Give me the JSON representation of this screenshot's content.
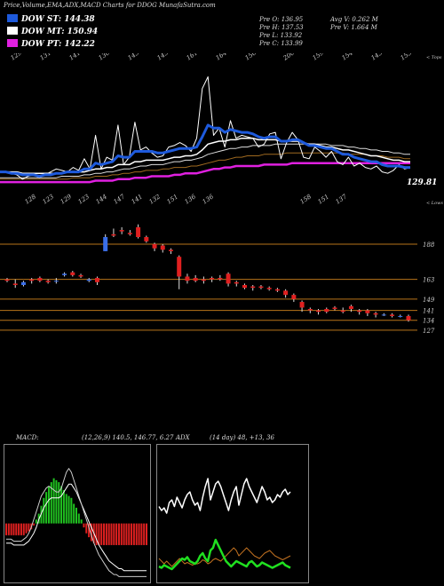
{
  "header": {
    "title": "Price,Volume,EMA,ADX,MACD Charts for DDOG MunafaSutra.com"
  },
  "legend": [
    {
      "label": "DOW ST: 144.38",
      "color": "#1e5adc"
    },
    {
      "label": "DOW MT: 150.94",
      "color": "#ffffff"
    },
    {
      "label": "DOW PT: 142.22",
      "color": "#e020e0"
    }
  ],
  "stats": {
    "col1": [
      "Pre  O: 136.95",
      "Pre  H: 137.53",
      "Pre  L: 133.92",
      "Pre  C: 133.99"
    ],
    "col2": [
      "Avg V: 0.262  M",
      "Pre  V: 1.664  M"
    ]
  },
  "upper": {
    "top_tag": "< Tops",
    "low_tag": "< Lows",
    "top_labels": [
      "129",
      "131",
      "141",
      "130",
      "143",
      "145",
      "161",
      "164",
      "156",
      "200",
      "159",
      "154",
      "143",
      "153"
    ],
    "low_labels": [
      "128",
      "123",
      "129",
      "123",
      "144",
      "147",
      "141",
      "132",
      "151",
      "136",
      "136",
      "158",
      "151",
      "137"
    ],
    "last_price": "129.81"
  },
  "chart_data": [
    {
      "type": "line",
      "title": "",
      "series_close": [
        133,
        133,
        132,
        131,
        128,
        130,
        131,
        129,
        131,
        133,
        135,
        134,
        133,
        136,
        134,
        142,
        135,
        158,
        135,
        143,
        141,
        165,
        138,
        143,
        167,
        148,
        150,
        146,
        143,
        144,
        150,
        151,
        153,
        151,
        147,
        156,
        190,
        198,
        158,
        163,
        150,
        168,
        156,
        158,
        157,
        156,
        150,
        152,
        159,
        160,
        142,
        153,
        160,
        155,
        143,
        142,
        150,
        147,
        143,
        147,
        140,
        138,
        143,
        137,
        139,
        136,
        135,
        137,
        133,
        132,
        134,
        138,
        135,
        136
      ],
      "dow_st": [
        133,
        133,
        132,
        132,
        131,
        131,
        131,
        130,
        131,
        131,
        132,
        132,
        133,
        133,
        133,
        135,
        135,
        139,
        138,
        139,
        140,
        144,
        143,
        143,
        147,
        147,
        147,
        147,
        146,
        146,
        147,
        148,
        149,
        149,
        149,
        150,
        157,
        165,
        163,
        163,
        160,
        162,
        161,
        160,
        160,
        159,
        157,
        156,
        157,
        157,
        154,
        154,
        155,
        155,
        153,
        151,
        151,
        150,
        149,
        149,
        147,
        145,
        145,
        143,
        142,
        141,
        140,
        140,
        138,
        137,
        137,
        137,
        136,
        136
      ],
      "dow_mt": [
        133,
        133,
        133,
        133,
        132,
        132,
        132,
        132,
        132,
        132,
        132,
        132,
        133,
        133,
        133,
        133,
        134,
        135,
        135,
        136,
        136,
        138,
        138,
        138,
        140,
        140,
        141,
        141,
        141,
        141,
        142,
        143,
        143,
        144,
        144,
        145,
        148,
        152,
        153,
        154,
        154,
        155,
        155,
        156,
        156,
        156,
        155,
        155,
        155,
        155,
        154,
        154,
        154,
        154,
        153,
        152,
        152,
        151,
        150,
        150,
        149,
        148,
        148,
        147,
        146,
        145,
        144,
        144,
        143,
        142,
        141,
        141,
        140,
        140
      ],
      "dow_pt": [
        126,
        126,
        126,
        126,
        126,
        126,
        126,
        126,
        126,
        126,
        126,
        126,
        126,
        126,
        126,
        126,
        126,
        127,
        127,
        127,
        127,
        128,
        128,
        128,
        129,
        129,
        129,
        130,
        130,
        130,
        130,
        131,
        131,
        132,
        132,
        132,
        133,
        134,
        135,
        135,
        136,
        136,
        137,
        137,
        137,
        137,
        137,
        138,
        138,
        138,
        138,
        138,
        139,
        139,
        139,
        139,
        139,
        139,
        139,
        139,
        139,
        139,
        139,
        139,
        139,
        139,
        139,
        139,
        139,
        139,
        139,
        139,
        139,
        139
      ],
      "ema_a": [
        129,
        129,
        129,
        129,
        129,
        129,
        129,
        129,
        129,
        129,
        129,
        130,
        130,
        130,
        130,
        131,
        131,
        132,
        132,
        133,
        133,
        134,
        135,
        135,
        136,
        137,
        137,
        138,
        138,
        138,
        139,
        140,
        140,
        141,
        141,
        142,
        143,
        145,
        146,
        147,
        148,
        149,
        149,
        150,
        150,
        151,
        151,
        151,
        151,
        152,
        152,
        152,
        152,
        152,
        152,
        152,
        152,
        152,
        152,
        151,
        151,
        151,
        150,
        150,
        149,
        149,
        148,
        148,
        147,
        147,
        146,
        146,
        145,
        145
      ],
      "ema_b": [
        128,
        128,
        128,
        128,
        128,
        128,
        128,
        128,
        128,
        128,
        128,
        128,
        128,
        129,
        129,
        129,
        129,
        130,
        130,
        130,
        131,
        131,
        132,
        132,
        133,
        133,
        134,
        134,
        134,
        135,
        135,
        136,
        136,
        136,
        137,
        137,
        138,
        139,
        140,
        141,
        141,
        142,
        143,
        143,
        144,
        144,
        144,
        145,
        145,
        145,
        145,
        146,
        146,
        146,
        146,
        146,
        146,
        146,
        146,
        146,
        146,
        146,
        145,
        145,
        145,
        145,
        144,
        144,
        144,
        143,
        143,
        143,
        142,
        142
      ],
      "ymin": 120,
      "ymax": 205
    },
    {
      "type": "candlestick",
      "title": "",
      "levels": [
        "188",
        "163",
        "149",
        "141",
        "134",
        "127"
      ],
      "candles": [
        {
          "o": 163,
          "c": 162,
          "h": 164,
          "l": 161
        },
        {
          "o": 160,
          "c": 159,
          "h": 163,
          "l": 157
        },
        {
          "o": 159,
          "c": 161,
          "h": 162,
          "l": 158
        },
        {
          "o": 163,
          "c": 162,
          "h": 164,
          "l": 160
        },
        {
          "o": 164,
          "c": 162,
          "h": 165,
          "l": 161
        },
        {
          "o": 162,
          "c": 161,
          "h": 163,
          "l": 160
        },
        {
          "o": 162,
          "c": 162,
          "h": 164,
          "l": 160
        },
        {
          "o": 166,
          "c": 167,
          "h": 168,
          "l": 165
        },
        {
          "o": 168,
          "c": 166,
          "h": 169,
          "l": 165
        },
        {
          "o": 166,
          "c": 165,
          "h": 167,
          "l": 164
        },
        {
          "o": 162,
          "c": 163,
          "h": 164,
          "l": 161
        },
        {
          "o": 164,
          "c": 161,
          "h": 165,
          "l": 159
        },
        {
          "o": 183,
          "c": 193,
          "h": 195,
          "l": 183
        },
        {
          "o": 195,
          "c": 194,
          "h": 199,
          "l": 193
        },
        {
          "o": 198,
          "c": 197,
          "h": 200,
          "l": 195
        },
        {
          "o": 196,
          "c": 195,
          "h": 198,
          "l": 194
        },
        {
          "o": 200,
          "c": 193,
          "h": 202,
          "l": 192
        },
        {
          "o": 193,
          "c": 190,
          "h": 194,
          "l": 189
        },
        {
          "o": 188,
          "c": 185,
          "h": 189,
          "l": 183
        },
        {
          "o": 187,
          "c": 184,
          "h": 188,
          "l": 182
        },
        {
          "o": 184,
          "c": 183,
          "h": 185,
          "l": 181
        },
        {
          "o": 179,
          "c": 165,
          "h": 180,
          "l": 156
        },
        {
          "o": 165,
          "c": 162,
          "h": 167,
          "l": 160
        },
        {
          "o": 164,
          "c": 162,
          "h": 166,
          "l": 161
        },
        {
          "o": 163,
          "c": 162,
          "h": 165,
          "l": 160
        },
        {
          "o": 164,
          "c": 163,
          "h": 165,
          "l": 161
        },
        {
          "o": 164,
          "c": 163,
          "h": 166,
          "l": 162
        },
        {
          "o": 167,
          "c": 160,
          "h": 168,
          "l": 158
        },
        {
          "o": 161,
          "c": 160,
          "h": 162,
          "l": 158
        },
        {
          "o": 159,
          "c": 157,
          "h": 160,
          "l": 156
        },
        {
          "o": 158,
          "c": 157,
          "h": 159,
          "l": 155
        },
        {
          "o": 158,
          "c": 157,
          "h": 159,
          "l": 156
        },
        {
          "o": 157,
          "c": 156,
          "h": 158,
          "l": 155
        },
        {
          "o": 156,
          "c": 155,
          "h": 157,
          "l": 154
        },
        {
          "o": 155,
          "c": 152,
          "h": 156,
          "l": 150
        },
        {
          "o": 152,
          "c": 149,
          "h": 153,
          "l": 147
        },
        {
          "o": 147,
          "c": 143,
          "h": 148,
          "l": 140
        },
        {
          "o": 142,
          "c": 141,
          "h": 143,
          "l": 139
        },
        {
          "o": 141,
          "c": 140,
          "h": 142,
          "l": 138
        },
        {
          "o": 142,
          "c": 140,
          "h": 143,
          "l": 139
        },
        {
          "o": 143,
          "c": 142,
          "h": 144,
          "l": 141
        },
        {
          "o": 141,
          "c": 140,
          "h": 143,
          "l": 139
        },
        {
          "o": 144,
          "c": 142,
          "h": 145,
          "l": 140
        },
        {
          "o": 141,
          "c": 140,
          "h": 142,
          "l": 138
        },
        {
          "o": 141,
          "c": 139,
          "h": 142,
          "l": 137
        },
        {
          "o": 139,
          "c": 138,
          "h": 140,
          "l": 136
        },
        {
          "o": 138,
          "c": 138,
          "h": 139,
          "l": 137
        },
        {
          "o": 138,
          "c": 137,
          "h": 139,
          "l": 136
        },
        {
          "o": 137,
          "c": 137,
          "h": 138,
          "l": 136
        },
        {
          "o": 137,
          "c": 134,
          "h": 138,
          "l": 133
        }
      ],
      "ymin": 125,
      "ymax": 210
    },
    {
      "type": "bar",
      "title": "",
      "label": "MACD:",
      "params": "(12,26,9) 140.5,  146.77,  6.27",
      "hist": [
        -6,
        -6,
        -6,
        -6,
        -6,
        -6,
        -6,
        -6,
        -5,
        -4,
        -3,
        -1,
        2,
        5,
        9,
        13,
        16,
        19,
        21,
        23,
        22,
        21,
        19,
        17,
        15,
        14,
        13,
        10,
        8,
        5,
        2,
        -2,
        -5,
        -7,
        -9,
        -10,
        -11,
        -11,
        -11,
        -11,
        -11,
        -11,
        -11,
        -11,
        -11,
        -11,
        -11,
        -11,
        -11,
        -11,
        -11,
        -11,
        -11,
        -11,
        -11,
        -11,
        -11
      ],
      "line1": [
        -8,
        -8,
        -8,
        -9,
        -9,
        -9,
        -9,
        -8,
        -7,
        -5,
        -2,
        2,
        6,
        10,
        14,
        16,
        18,
        19,
        18,
        17,
        16,
        16,
        18,
        22,
        26,
        28,
        26,
        22,
        18,
        14,
        10,
        6,
        2,
        -2,
        -6,
        -10,
        -13,
        -16,
        -18,
        -20,
        -22,
        -24,
        -25,
        -26,
        -26,
        -27,
        -27,
        -27,
        -27,
        -27,
        -27,
        -27,
        -27,
        -27,
        -27,
        -27,
        -27
      ],
      "line2": [
        -10,
        -10,
        -10,
        -11,
        -11,
        -11,
        -11,
        -11,
        -10,
        -9,
        -7,
        -5,
        -2,
        2,
        5,
        8,
        10,
        12,
        13,
        13,
        13,
        13,
        14,
        16,
        18,
        20,
        20,
        18,
        16,
        13,
        10,
        7,
        4,
        1,
        -2,
        -5,
        -8,
        -11,
        -13,
        -15,
        -17,
        -19,
        -20,
        -21,
        -22,
        -23,
        -23,
        -24,
        -24,
        -24,
        -24,
        -24,
        -24,
        -24,
        -24,
        -24,
        -24
      ],
      "ymin": -30,
      "ymax": 40
    },
    {
      "type": "line",
      "title": "",
      "label": "ADX",
      "params": "(14 day) 48,  +13,  36",
      "adx": [
        55,
        52,
        54,
        50,
        58,
        60,
        55,
        62,
        58,
        54,
        60,
        64,
        66,
        60,
        56,
        58,
        52,
        62,
        70,
        76,
        60,
        66,
        72,
        74,
        70,
        64,
        58,
        52,
        60,
        66,
        70,
        56,
        64,
        72,
        76,
        70,
        66,
        62,
        58,
        64,
        70,
        66,
        60,
        62,
        58,
        60,
        64,
        62,
        66,
        68,
        64,
        66
      ],
      "plus_di": [
        10,
        9,
        11,
        10,
        9,
        8,
        10,
        12,
        14,
        16,
        15,
        17,
        14,
        13,
        12,
        14,
        18,
        20,
        16,
        14,
        22,
        24,
        30,
        26,
        22,
        18,
        14,
        12,
        10,
        12,
        14,
        13,
        12,
        11,
        10,
        13,
        14,
        12,
        10,
        11,
        13,
        12,
        11,
        10,
        9,
        10,
        11,
        12,
        13,
        11,
        10,
        9
      ],
      "minus_di": [
        16,
        14,
        12,
        14,
        12,
        10,
        12,
        14,
        16,
        14,
        12,
        13,
        12,
        11,
        12,
        12,
        13,
        15,
        14,
        12,
        13,
        15,
        16,
        15,
        14,
        16,
        18,
        20,
        22,
        24,
        22,
        18,
        20,
        22,
        24,
        22,
        20,
        18,
        17,
        16,
        18,
        20,
        21,
        22,
        20,
        18,
        17,
        16,
        15,
        16,
        17,
        18
      ],
      "ymin": 0,
      "ymax": 100
    }
  ]
}
